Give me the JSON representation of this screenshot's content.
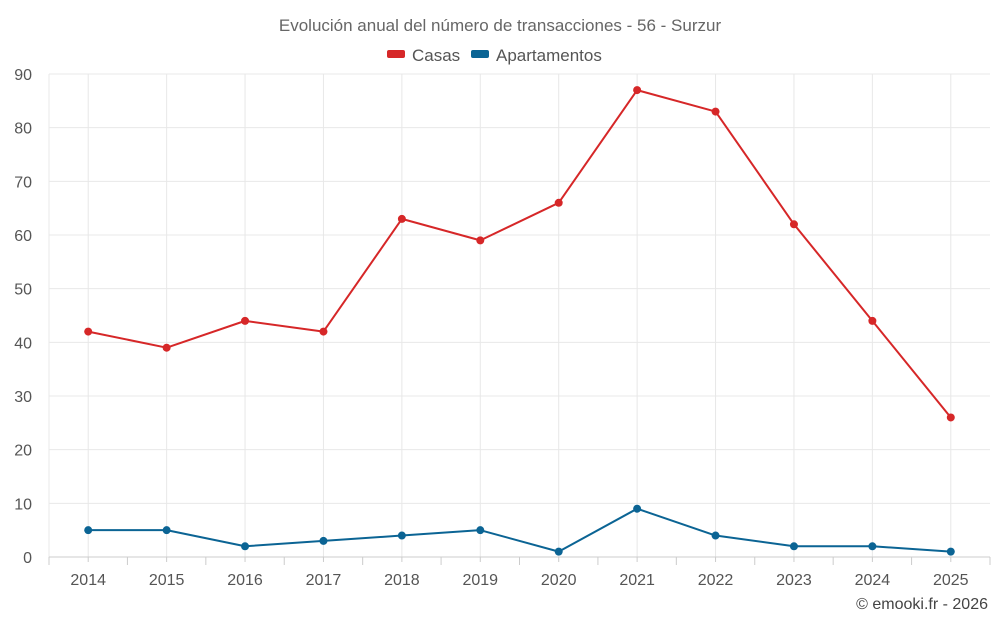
{
  "chart_data": {
    "type": "line",
    "title": "Evolución anual del número de transacciones - 56 - Surzur",
    "categories": [
      "2014",
      "2015",
      "2016",
      "2017",
      "2018",
      "2019",
      "2020",
      "2021",
      "2022",
      "2023",
      "2024",
      "2025"
    ],
    "series": [
      {
        "name": "Casas",
        "color": "#d62728",
        "values": [
          42,
          39,
          44,
          42,
          63,
          59,
          66,
          87,
          83,
          62,
          44,
          26
        ]
      },
      {
        "name": "Apartamentos",
        "color": "#0b6494",
        "values": [
          5,
          5,
          2,
          3,
          4,
          5,
          1,
          9,
          4,
          2,
          2,
          1
        ]
      }
    ],
    "ylim": [
      0,
      90
    ],
    "yticks": [
      "0",
      "10",
      "20",
      "30",
      "40",
      "50",
      "60",
      "70",
      "80",
      "90"
    ],
    "grid": true,
    "legend_position": "top-center",
    "credit": "© emooki.fr - 2026"
  }
}
